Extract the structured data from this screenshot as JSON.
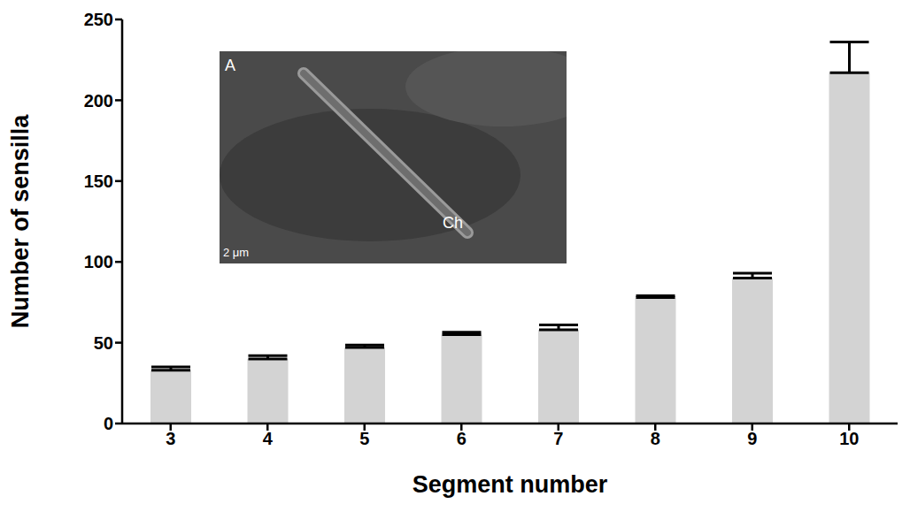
{
  "chart_data": {
    "type": "bar",
    "x_label": "Segment number",
    "y_label": "Number of sensilla",
    "categories": [
      "3",
      "4",
      "5",
      "6",
      "7",
      "8",
      "9",
      "10"
    ],
    "values": [
      33,
      40,
      47,
      55,
      58,
      78,
      90,
      217
    ],
    "errors": [
      2,
      2,
      1.5,
      1.5,
      3,
      1,
      3,
      19
    ],
    "color": "#d3d3d3",
    "ylim": [
      0,
      250
    ],
    "yticks": [
      0,
      50,
      100,
      150,
      200,
      250
    ],
    "grid": false,
    "annotations": [
      "A",
      "Ch",
      "2 μm"
    ]
  }
}
